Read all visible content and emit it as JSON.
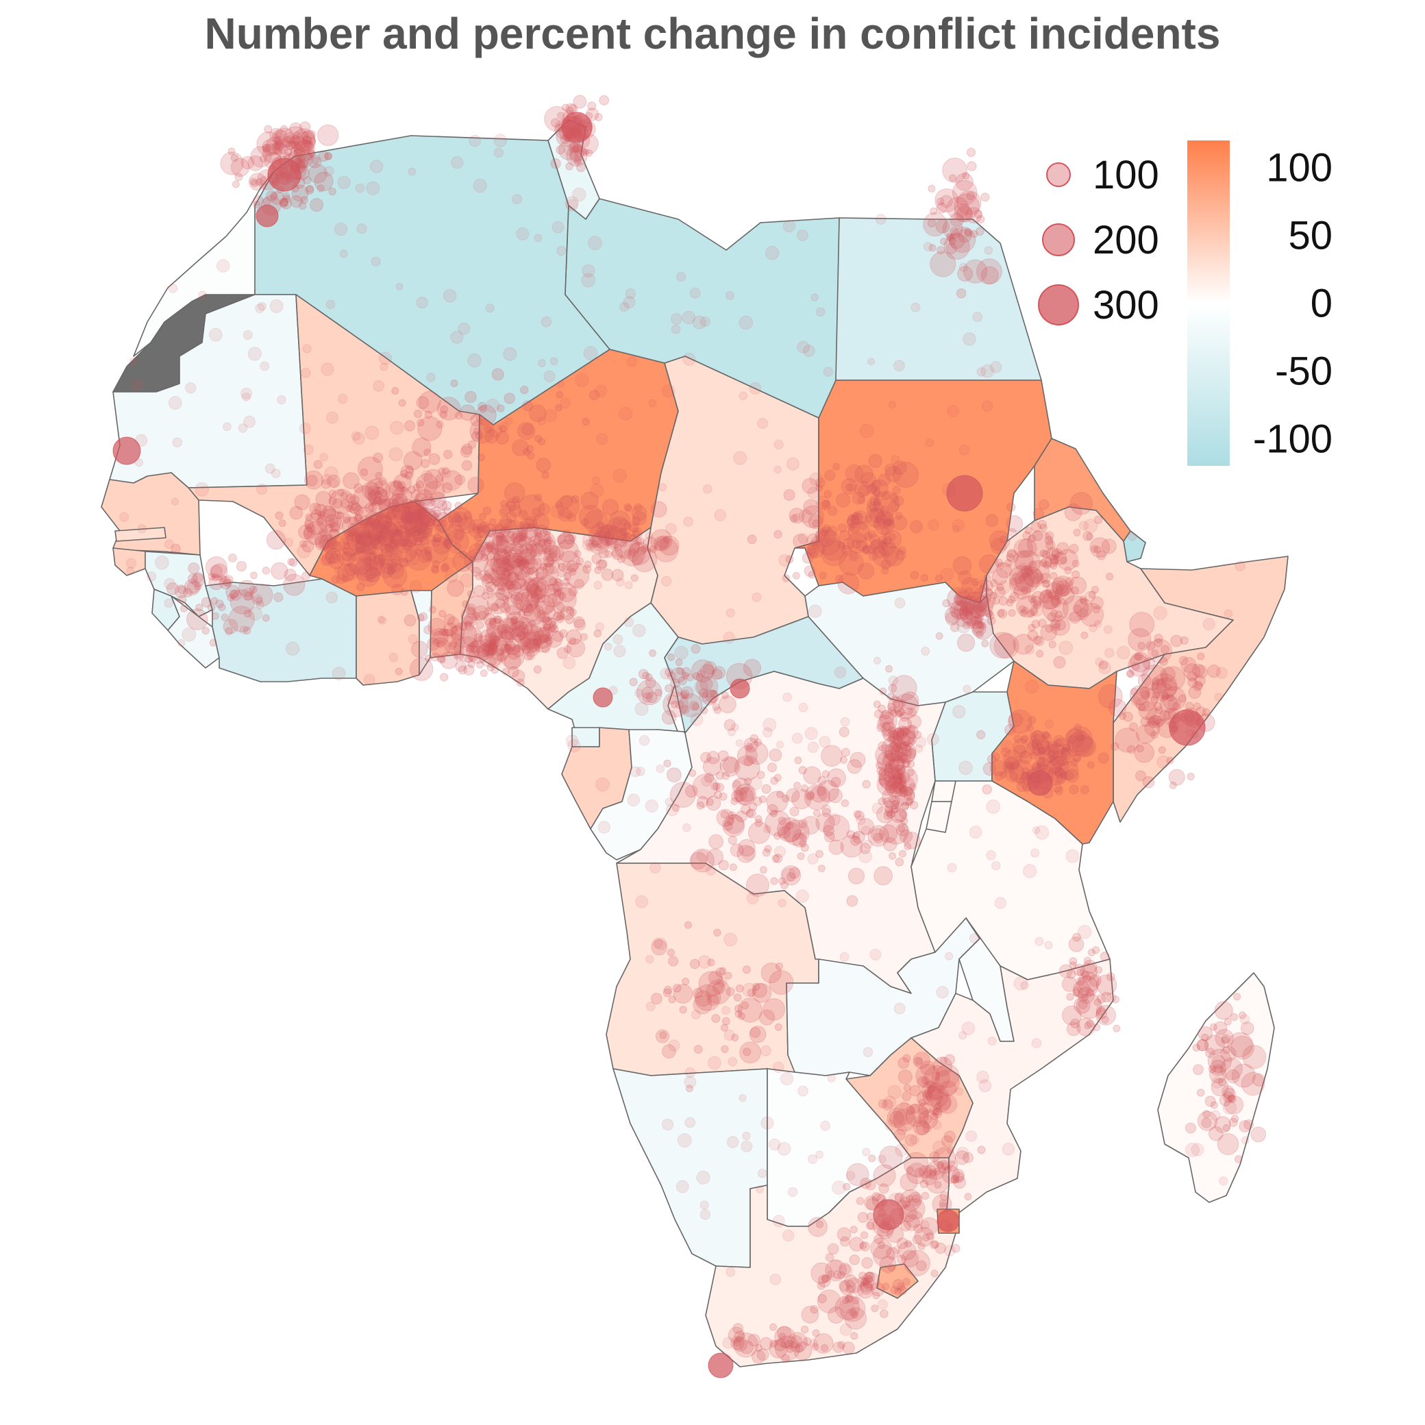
{
  "title": "Number and percent change in conflict incidents",
  "colors": {
    "decrease": "#acdde3",
    "neutral": "#ffffff",
    "increase": "#ff7f4a",
    "point": "#d2555c",
    "border": "#666666",
    "disputed": "#6e6e6e",
    "title": "#555555"
  },
  "size_legend": {
    "entries": [
      {
        "label": "100",
        "value": 100
      },
      {
        "label": "200",
        "value": 200
      },
      {
        "label": "300",
        "value": 300
      }
    ]
  },
  "color_legend": {
    "range": [
      -120,
      120
    ],
    "ticks": [
      {
        "label": "100",
        "value": 100
      },
      {
        "label": "50",
        "value": 50
      },
      {
        "label": "0",
        "value": 0
      },
      {
        "label": "-50",
        "value": -50
      },
      {
        "label": "-100",
        "value": -100
      }
    ]
  },
  "countries": [
    {
      "name": "Western Sahara",
      "change": null
    },
    {
      "name": "Morocco",
      "change": -5
    },
    {
      "name": "Algeria",
      "change": -90
    },
    {
      "name": "Tunisia",
      "change": -30
    },
    {
      "name": "Libya",
      "change": -90
    },
    {
      "name": "Egypt",
      "change": -60
    },
    {
      "name": "Mauritania",
      "change": -20
    },
    {
      "name": "Mali",
      "change": 40
    },
    {
      "name": "Niger",
      "change": 100
    },
    {
      "name": "Chad",
      "change": 30
    },
    {
      "name": "Sudan",
      "change": 100
    },
    {
      "name": "Eritrea",
      "change": 90
    },
    {
      "name": "Djibouti",
      "change": -100
    },
    {
      "name": "Ethiopia",
      "change": 30
    },
    {
      "name": "Somalia",
      "change": 40
    },
    {
      "name": "Senegal",
      "change": 40
    },
    {
      "name": "Gambia",
      "change": 30
    },
    {
      "name": "Guinea-Bissau",
      "change": 40
    },
    {
      "name": "Guinea",
      "change": -30
    },
    {
      "name": "Sierra Leone",
      "change": -40
    },
    {
      "name": "Liberia",
      "change": -20
    },
    {
      "name": "Ivory Coast",
      "change": -60
    },
    {
      "name": "Burkina Faso",
      "change": 100
    },
    {
      "name": "Ghana",
      "change": 40
    },
    {
      "name": "Togo",
      "change": -20
    },
    {
      "name": "Benin",
      "change": 50
    },
    {
      "name": "Nigeria",
      "change": 20
    },
    {
      "name": "Cameroon",
      "change": -30
    },
    {
      "name": "Central African Republic",
      "change": -70
    },
    {
      "name": "South Sudan",
      "change": -20
    },
    {
      "name": "Uganda",
      "change": -40
    },
    {
      "name": "Kenya",
      "change": 100
    },
    {
      "name": "Equatorial Guinea",
      "change": -30
    },
    {
      "name": "Gabon",
      "change": 40
    },
    {
      "name": "Republic of the Congo",
      "change": -10
    },
    {
      "name": "Democratic Republic of the Congo",
      "change": 8
    },
    {
      "name": "Rwanda",
      "change": 5
    },
    {
      "name": "Burundi",
      "change": 5
    },
    {
      "name": "Tanzania",
      "change": 5
    },
    {
      "name": "Angola",
      "change": 25
    },
    {
      "name": "Zambia",
      "change": -15
    },
    {
      "name": "Malawi",
      "change": -10
    },
    {
      "name": "Mozambique",
      "change": 10
    },
    {
      "name": "Zimbabwe",
      "change": 45
    },
    {
      "name": "Namibia",
      "change": -20
    },
    {
      "name": "Botswana",
      "change": -5
    },
    {
      "name": "South Africa",
      "change": 15
    },
    {
      "name": "Lesotho",
      "change": 70
    },
    {
      "name": "Eswatini",
      "change": 90
    },
    {
      "name": "Madagascar",
      "change": 5
    }
  ]
}
